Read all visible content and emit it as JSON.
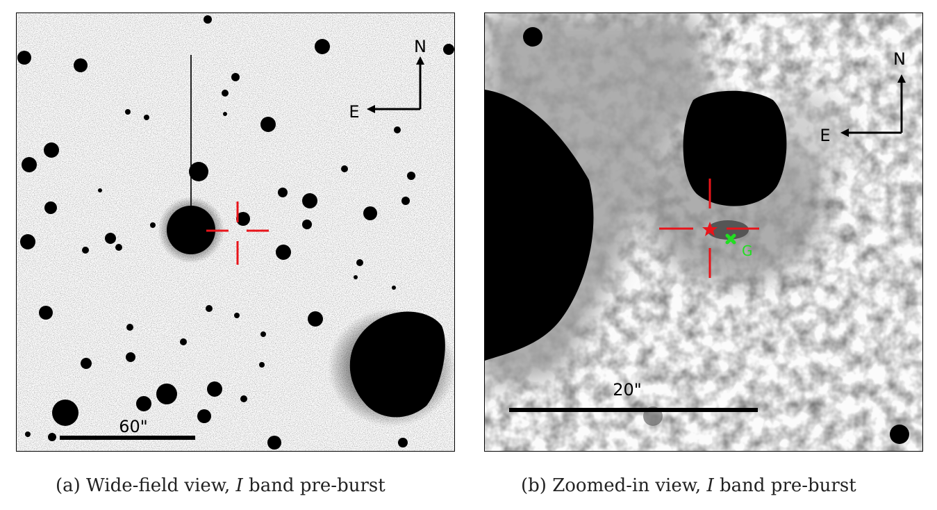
{
  "panel_a": {
    "scale_label": "60\"",
    "north_label": "N",
    "east_label": "E"
  },
  "panel_b": {
    "scale_label": "20\"",
    "north_label": "N",
    "east_label": "E",
    "marker_label": "G"
  },
  "captions": {
    "a_prefix": "(a) Wide-field view, ",
    "a_band": "I",
    "a_suffix": " band pre-burst",
    "b_prefix": "(b) Zoomed-in view, ",
    "b_band": "I",
    "b_suffix": " band pre-burst"
  },
  "colors": {
    "crosshair": "#e8141a",
    "marker_g": "#22dd22",
    "background": "#fbfbfb",
    "ink": "#000000"
  }
}
